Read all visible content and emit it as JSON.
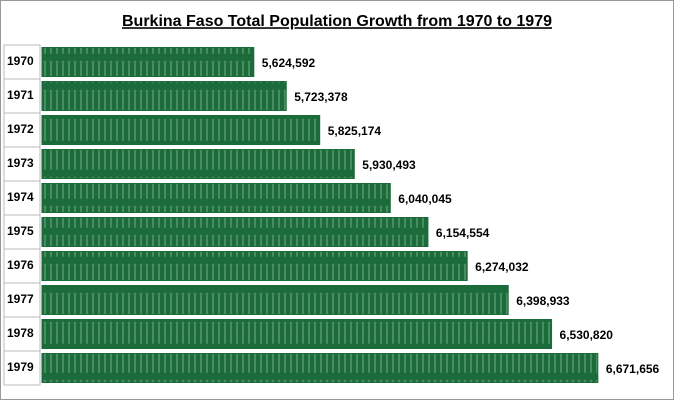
{
  "chart_data": {
    "type": "bar",
    "orientation": "horizontal",
    "title": "Burkina Faso Total Population Growth from 1970 to 1979",
    "categories": [
      "1970",
      "1971",
      "1972",
      "1973",
      "1974",
      "1975",
      "1976",
      "1977",
      "1978",
      "1979"
    ],
    "values": [
      5624592,
      5723378,
      5825174,
      5930493,
      6040045,
      6154554,
      6274032,
      6398933,
      6530820,
      6671656
    ],
    "value_labels": [
      "5,624,592",
      "5,723,378",
      "5,825,174",
      "5,930,493",
      "6,040,045",
      "6,154,554",
      "6,274,032",
      "6,398,933",
      "6,530,820",
      "6,671,656"
    ],
    "color": "#1c6b3a",
    "xlim": [
      4980000,
      6800000
    ]
  }
}
